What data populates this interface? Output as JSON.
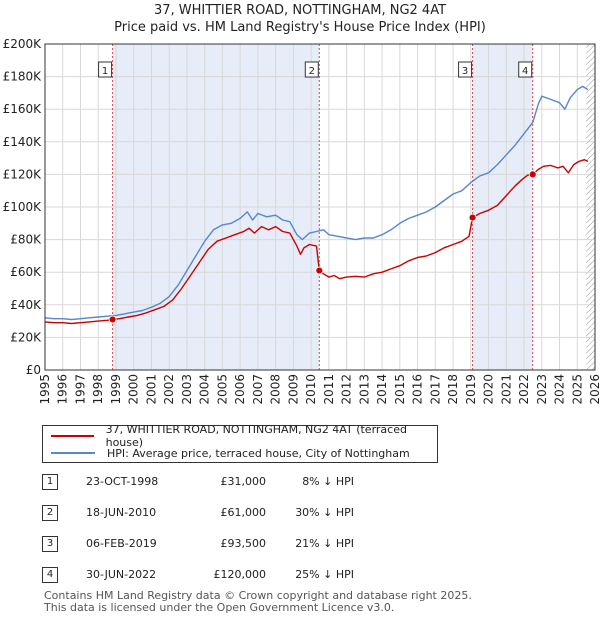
{
  "colors": {
    "price_paid": "#cc0000",
    "hpi": "#5588cc",
    "shade": "#e6ecf8",
    "grid": "#d8d8d8",
    "event_line": "#dd4444",
    "axis": "#333333"
  },
  "chart_data": {
    "type": "line",
    "title": "37, WHITTIER ROAD, NOTTINGHAM, NG2 4AT",
    "subtitle": "Price paid vs. HM Land Registry's House Price Index (HPI)",
    "xlabel": "",
    "ylabel": "",
    "xlim": [
      1995.0,
      2026.0
    ],
    "ylim": [
      0,
      200000
    ],
    "grid": true,
    "x_tick_labels": [
      "1995",
      "1996",
      "1997",
      "1998",
      "1999",
      "2000",
      "2001",
      "2002",
      "2003",
      "2004",
      "2005",
      "2006",
      "2007",
      "2008",
      "2009",
      "2010",
      "2011",
      "2012",
      "2013",
      "2014",
      "2015",
      "2016",
      "2017",
      "2018",
      "2019",
      "2020",
      "2021",
      "2022",
      "2023",
      "2024",
      "2025",
      "2026"
    ],
    "y_ticks": [
      0,
      20000,
      40000,
      60000,
      80000,
      100000,
      120000,
      140000,
      160000,
      180000,
      200000
    ],
    "y_tick_labels": [
      "£0",
      "£20K",
      "£40K",
      "£60K",
      "£80K",
      "£100K",
      "£120K",
      "£140K",
      "£160K",
      "£180K",
      "£200K"
    ],
    "legend_position": "below",
    "series": [
      {
        "name": "37, WHITTIER ROAD, NOTTINGHAM, NG2 4AT (terraced house)",
        "color": "#cc0000",
        "points": [
          [
            1995.0,
            29500
          ],
          [
            1995.5,
            29000
          ],
          [
            1996.0,
            29000
          ],
          [
            1996.5,
            28500
          ],
          [
            1997.0,
            29000
          ],
          [
            1997.5,
            29500
          ],
          [
            1998.0,
            30000
          ],
          [
            1998.5,
            30500
          ],
          [
            1998.81,
            31000
          ],
          [
            1999.2,
            31500
          ],
          [
            1999.7,
            32500
          ],
          [
            2000.2,
            33500
          ],
          [
            2000.7,
            35000
          ],
          [
            2001.2,
            37000
          ],
          [
            2001.7,
            39000
          ],
          [
            2002.2,
            43000
          ],
          [
            2002.7,
            50000
          ],
          [
            2003.2,
            58000
          ],
          [
            2003.7,
            66000
          ],
          [
            2004.2,
            74000
          ],
          [
            2004.7,
            79000
          ],
          [
            2005.2,
            81000
          ],
          [
            2005.7,
            83000
          ],
          [
            2006.2,
            85000
          ],
          [
            2006.5,
            87000
          ],
          [
            2006.8,
            84000
          ],
          [
            2007.2,
            88000
          ],
          [
            2007.6,
            86000
          ],
          [
            2008.0,
            88000
          ],
          [
            2008.4,
            85000
          ],
          [
            2008.8,
            84000
          ],
          [
            2009.2,
            76000
          ],
          [
            2009.4,
            71000
          ],
          [
            2009.6,
            75000
          ],
          [
            2009.9,
            77000
          ],
          [
            2010.3,
            76000
          ],
          [
            2010.46,
            61000
          ],
          [
            2010.7,
            59000
          ],
          [
            2011.0,
            57000
          ],
          [
            2011.3,
            58000
          ],
          [
            2011.6,
            56000
          ],
          [
            2012.0,
            57000
          ],
          [
            2012.5,
            57500
          ],
          [
            2013.0,
            57000
          ],
          [
            2013.5,
            59000
          ],
          [
            2014.0,
            60000
          ],
          [
            2014.5,
            62000
          ],
          [
            2015.0,
            64000
          ],
          [
            2015.5,
            67000
          ],
          [
            2016.0,
            69000
          ],
          [
            2016.5,
            70000
          ],
          [
            2017.0,
            72000
          ],
          [
            2017.5,
            75000
          ],
          [
            2018.0,
            77000
          ],
          [
            2018.5,
            79000
          ],
          [
            2018.9,
            82000
          ],
          [
            2019.1,
            93500
          ],
          [
            2019.5,
            96000
          ],
          [
            2020.0,
            98000
          ],
          [
            2020.5,
            101000
          ],
          [
            2021.0,
            107000
          ],
          [
            2021.5,
            113000
          ],
          [
            2021.9,
            117000
          ],
          [
            2022.2,
            119500
          ],
          [
            2022.49,
            120000
          ],
          [
            2022.8,
            123000
          ],
          [
            2023.1,
            125000
          ],
          [
            2023.5,
            125500
          ],
          [
            2023.9,
            124000
          ],
          [
            2024.2,
            125000
          ],
          [
            2024.5,
            121000
          ],
          [
            2024.8,
            126000
          ],
          [
            2025.1,
            128000
          ],
          [
            2025.4,
            129000
          ],
          [
            2025.6,
            128000
          ]
        ]
      },
      {
        "name": "HPI: Average price, terraced house, City of Nottingham",
        "color": "#5588cc",
        "points": [
          [
            1995.0,
            32000
          ],
          [
            1995.5,
            31500
          ],
          [
            1996.0,
            31500
          ],
          [
            1996.5,
            31000
          ],
          [
            1997.0,
            31500
          ],
          [
            1997.5,
            32000
          ],
          [
            1998.0,
            32500
          ],
          [
            1998.5,
            33000
          ],
          [
            1999.0,
            33500
          ],
          [
            1999.5,
            34500
          ],
          [
            2000.0,
            35500
          ],
          [
            2000.5,
            36500
          ],
          [
            2001.0,
            38500
          ],
          [
            2001.5,
            41000
          ],
          [
            2002.0,
            45000
          ],
          [
            2002.5,
            52000
          ],
          [
            2003.0,
            61000
          ],
          [
            2003.5,
            70000
          ],
          [
            2004.0,
            79000
          ],
          [
            2004.5,
            86000
          ],
          [
            2005.0,
            89000
          ],
          [
            2005.5,
            90000
          ],
          [
            2006.0,
            93000
          ],
          [
            2006.4,
            97000
          ],
          [
            2006.7,
            92000
          ],
          [
            2007.0,
            96000
          ],
          [
            2007.5,
            94000
          ],
          [
            2008.0,
            95000
          ],
          [
            2008.4,
            92000
          ],
          [
            2008.8,
            91000
          ],
          [
            2009.2,
            83000
          ],
          [
            2009.5,
            80000
          ],
          [
            2009.9,
            84000
          ],
          [
            2010.3,
            85000
          ],
          [
            2010.7,
            86000
          ],
          [
            2011.0,
            83000
          ],
          [
            2011.5,
            82000
          ],
          [
            2012.0,
            81000
          ],
          [
            2012.5,
            80000
          ],
          [
            2013.0,
            81000
          ],
          [
            2013.5,
            81000
          ],
          [
            2014.0,
            83000
          ],
          [
            2014.5,
            86000
          ],
          [
            2015.0,
            90000
          ],
          [
            2015.5,
            93000
          ],
          [
            2016.0,
            95000
          ],
          [
            2016.5,
            97000
          ],
          [
            2017.0,
            100000
          ],
          [
            2017.5,
            104000
          ],
          [
            2018.0,
            108000
          ],
          [
            2018.5,
            110000
          ],
          [
            2019.0,
            115000
          ],
          [
            2019.5,
            119000
          ],
          [
            2020.0,
            121000
          ],
          [
            2020.5,
            126000
          ],
          [
            2021.0,
            132000
          ],
          [
            2021.5,
            138000
          ],
          [
            2022.0,
            145000
          ],
          [
            2022.5,
            152000
          ],
          [
            2022.8,
            163000
          ],
          [
            2023.0,
            168000
          ],
          [
            2023.5,
            166000
          ],
          [
            2024.0,
            164000
          ],
          [
            2024.3,
            160000
          ],
          [
            2024.6,
            167000
          ],
          [
            2025.0,
            172000
          ],
          [
            2025.3,
            174000
          ],
          [
            2025.6,
            172000
          ]
        ]
      }
    ],
    "sales": [
      {
        "num": "1",
        "x": 1998.81,
        "value": 31000
      },
      {
        "num": "2",
        "x": 2010.46,
        "value": 61000
      },
      {
        "num": "3",
        "x": 2019.1,
        "value": 93500
      },
      {
        "num": "4",
        "x": 2022.49,
        "value": 120000
      }
    ],
    "shaded_ranges": [
      [
        1998.81,
        2010.46
      ],
      [
        2019.1,
        2022.49
      ]
    ],
    "hatched_from": 2025.5
  },
  "legend": {
    "price_paid_label": "37, WHITTIER ROAD, NOTTINGHAM, NG2 4AT (terraced house)",
    "hpi_label": "HPI: Average price, terraced house, City of Nottingham"
  },
  "sales_table": [
    {
      "num": "1",
      "date": "23-OCT-1998",
      "price": "£31,000",
      "hpi": "8% ↓ HPI"
    },
    {
      "num": "2",
      "date": "18-JUN-2010",
      "price": "£61,000",
      "hpi": "30% ↓ HPI"
    },
    {
      "num": "3",
      "date": "06-FEB-2019",
      "price": "£93,500",
      "hpi": "21% ↓ HPI"
    },
    {
      "num": "4",
      "date": "30-JUN-2022",
      "price": "£120,000",
      "hpi": "25% ↓ HPI"
    }
  ],
  "footer": {
    "line1": "Contains HM Land Registry data © Crown copyright and database right 2025.",
    "line2": "This data is licensed under the Open Government Licence v3.0."
  }
}
